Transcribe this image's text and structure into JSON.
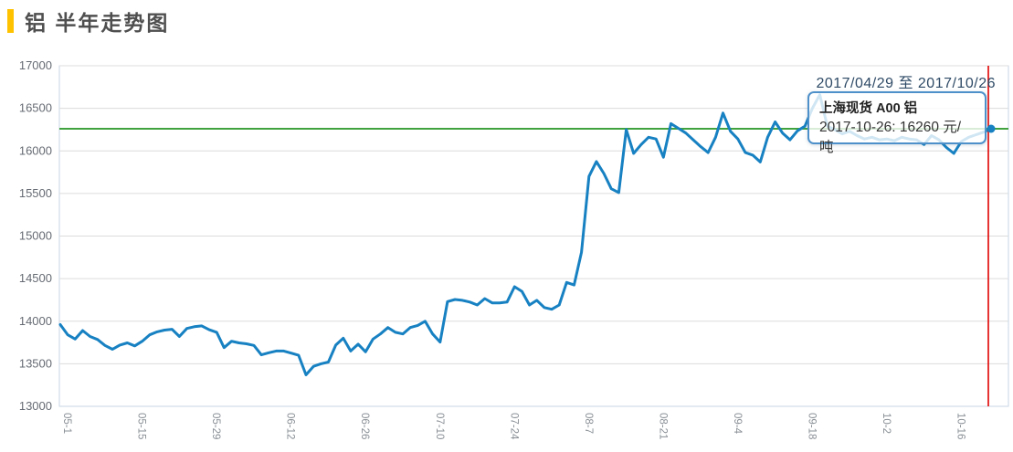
{
  "page": {
    "title": "铝 半年走势图",
    "accent_color": "#ffc200"
  },
  "chart_data": {
    "type": "line",
    "title": "铝 半年走势图",
    "series_name": "上海现货 A00 铝",
    "date_range_label": "2017/04/29 至 2017/10/26",
    "unit": "元/吨",
    "ylim": [
      13000,
      17000
    ],
    "y_ticks": [
      17000,
      16500,
      16000,
      15500,
      15000,
      14500,
      14000,
      13500,
      13000
    ],
    "x_tick_labels": [
      "05-1",
      "05-15",
      "05-29",
      "06-12",
      "06-26",
      "07-10",
      "07-24",
      "08-7",
      "08-21",
      "09-4",
      "09-18",
      "10-2",
      "10-16"
    ],
    "x_tick_indices": [
      1,
      11,
      21,
      31,
      41,
      51,
      61,
      71,
      81,
      91,
      101,
      111,
      121
    ],
    "grid": true,
    "legend_position": "none",
    "reference_line_value": 16260,
    "last_point": {
      "date": "2017-10-26",
      "value": 16260
    },
    "values": [
      13960,
      13840,
      13790,
      13890,
      13820,
      13785,
      13715,
      13670,
      13720,
      13745,
      13710,
      13765,
      13840,
      13875,
      13895,
      13905,
      13820,
      13915,
      13935,
      13945,
      13900,
      13870,
      13690,
      13765,
      13745,
      13735,
      13715,
      13605,
      13630,
      13650,
      13650,
      13625,
      13600,
      13370,
      13470,
      13500,
      13520,
      13720,
      13800,
      13650,
      13730,
      13640,
      13790,
      13850,
      13925,
      13870,
      13850,
      13925,
      13950,
      14000,
      13850,
      13755,
      14230,
      14255,
      14245,
      14225,
      14190,
      14265,
      14215,
      14215,
      14225,
      14405,
      14350,
      14190,
      14245,
      14160,
      14140,
      14190,
      14455,
      14425,
      14810,
      15700,
      15875,
      15735,
      15555,
      15510,
      16250,
      15970,
      16075,
      16160,
      16140,
      15925,
      16320,
      16265,
      16210,
      16130,
      16050,
      15980,
      16160,
      16445,
      16230,
      16140,
      15980,
      15950,
      15870,
      16160,
      16340,
      16210,
      16130,
      16235,
      16290,
      16500,
      16660,
      16290,
      16250,
      16200,
      16230,
      16180,
      16140,
      16160,
      16130,
      16140,
      16120,
      16160,
      16140,
      16130,
      16075,
      16180,
      16130,
      16040,
      15970,
      16110,
      16160,
      16190,
      16220,
      16260
    ],
    "colors": {
      "line": "#1781c2",
      "reference_line": "#3fa23f",
      "crosshair": "#e00000",
      "grid": "#dcdcdc",
      "plot_border": "#c9d5e5",
      "y_label": "#666b73",
      "x_label": "#8a9096"
    },
    "tooltip": {
      "title": "上海现货 A00 铝",
      "value_line": "2017-10-26: 16260 元/吨"
    }
  }
}
